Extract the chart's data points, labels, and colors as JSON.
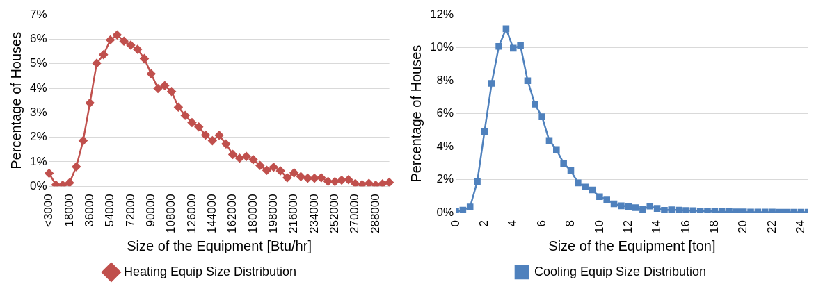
{
  "chart_data": [
    {
      "type": "line",
      "xlabel": "Size of the Equipment [Btu/hr]",
      "ylabel": "Percentage of Houses",
      "categories": [
        "<3000",
        null,
        null,
        "18000",
        null,
        null,
        "36000",
        null,
        null,
        "54000",
        null,
        null,
        "72000",
        null,
        null,
        "90000",
        null,
        null,
        "108000",
        null,
        null,
        "126000",
        null,
        null,
        "144000",
        null,
        null,
        "162000",
        null,
        null,
        "180000",
        null,
        null,
        "198000",
        null,
        null,
        "216000",
        null,
        null,
        "234000",
        null,
        null,
        "252000",
        null,
        null,
        "270000",
        null,
        null,
        "288000",
        null,
        null
      ],
      "series": [
        {
          "name": "Heating Equip Size Distribution",
          "color": "#c0504d",
          "values": [
            0.53,
            0.06,
            0.05,
            0.14,
            0.8,
            1.86,
            3.4,
            5.02,
            5.37,
            5.97,
            6.18,
            5.92,
            5.76,
            5.59,
            5.21,
            4.59,
            3.99,
            4.11,
            3.87,
            3.23,
            2.89,
            2.6,
            2.42,
            2.09,
            1.86,
            2.08,
            1.73,
            1.3,
            1.15,
            1.22,
            1.09,
            0.85,
            0.65,
            0.78,
            0.63,
            0.35,
            0.55,
            0.4,
            0.33,
            0.33,
            0.35,
            0.2,
            0.19,
            0.25,
            0.27,
            0.11,
            0.07,
            0.12,
            0.05,
            0.1,
            0.16
          ]
        }
      ],
      "ylim": [
        0,
        7
      ],
      "yticks": [
        {
          "value": 0,
          "label": "0%"
        },
        {
          "value": 1,
          "label": "1%"
        },
        {
          "value": 2,
          "label": "2%"
        },
        {
          "value": 3,
          "label": "3%"
        },
        {
          "value": 4,
          "label": "4%"
        },
        {
          "value": 5,
          "label": "5%"
        },
        {
          "value": 6,
          "label": "6%"
        },
        {
          "value": 7,
          "label": "7%"
        }
      ],
      "grid": "y",
      "legend": "bottom",
      "marker": "diamond"
    },
    {
      "type": "line",
      "xlabel": "Size of the Equipment [ton]",
      "ylabel": "Percentage of Houses",
      "x": [
        0,
        0.5,
        1,
        1.5,
        2,
        2.5,
        3,
        3.5,
        4,
        4.5,
        5,
        5.5,
        6,
        6.5,
        7,
        7.5,
        8,
        8.5,
        9,
        9.5,
        10,
        10.5,
        11,
        11.5,
        12,
        12.5,
        13,
        13.5,
        14,
        14.5,
        15,
        15.5,
        16,
        16.5,
        17,
        17.5,
        18,
        18.5,
        19,
        19.5,
        20,
        20.5,
        21,
        21.5,
        22,
        22.5,
        23,
        23.5,
        24,
        24.5
      ],
      "series": [
        {
          "name": "Cooling Equip Size Distribution",
          "color": "#4f81bd",
          "values": [
            0.05,
            0.15,
            0.34,
            1.88,
            4.91,
            7.84,
            10.08,
            11.15,
            9.97,
            10.12,
            8.0,
            6.58,
            5.81,
            4.37,
            3.82,
            2.99,
            2.54,
            1.8,
            1.55,
            1.37,
            0.96,
            0.8,
            0.53,
            0.41,
            0.37,
            0.3,
            0.2,
            0.39,
            0.25,
            0.14,
            0.17,
            0.15,
            0.13,
            0.12,
            0.1,
            0.1,
            0.06,
            0.05,
            0.05,
            0.04,
            0.04,
            0.03,
            0.03,
            0.03,
            0.03,
            0.02,
            0.02,
            0.02,
            0.02,
            0.02
          ]
        }
      ],
      "xlim": [
        0,
        24.5
      ],
      "xticks": [
        0,
        2,
        4,
        6,
        8,
        10,
        12,
        14,
        16,
        18,
        20,
        22,
        24
      ],
      "ylim": [
        0,
        12
      ],
      "yticks": [
        {
          "value": 0,
          "label": "0%"
        },
        {
          "value": 2,
          "label": "2%"
        },
        {
          "value": 4,
          "label": "4%"
        },
        {
          "value": 6,
          "label": "6%"
        },
        {
          "value": 8,
          "label": "8%"
        },
        {
          "value": 10,
          "label": "10%"
        },
        {
          "value": 12,
          "label": "12%"
        }
      ],
      "grid": "y",
      "legend": "bottom",
      "marker": "square"
    }
  ]
}
